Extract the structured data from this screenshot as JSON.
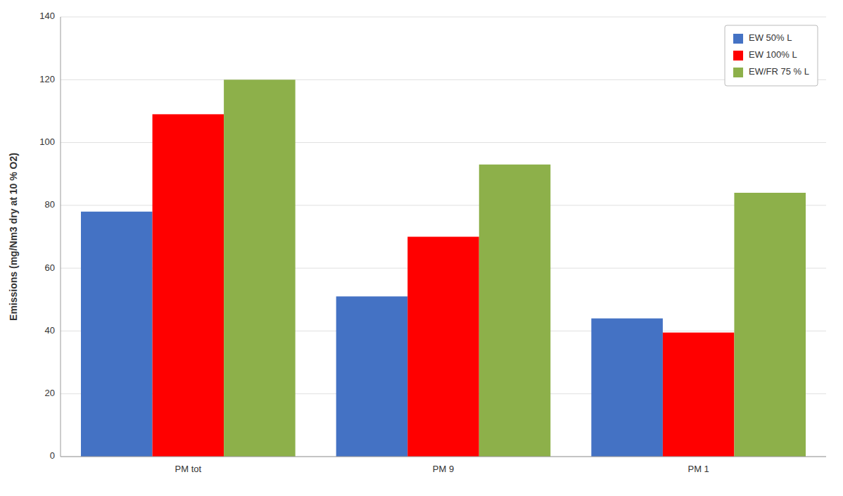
{
  "chart_data": {
    "type": "bar",
    "categories": [
      "PM tot",
      "PM 9",
      "PM 1"
    ],
    "series": [
      {
        "name": "EW 50% L",
        "color": "#4472C4",
        "values": [
          78,
          51,
          44
        ]
      },
      {
        "name": "EW 100% L",
        "color": "#FF0000",
        "values": [
          109,
          70,
          39.5
        ]
      },
      {
        "name": "EW/FR 75 % L",
        "color": "#8DB04A",
        "values": [
          120,
          93,
          84
        ]
      }
    ],
    "ylabel": "Emissions (mg/Nm3 dry at 10 % O2)",
    "ylim": [
      0,
      140
    ],
    "yticks": [
      0,
      20,
      40,
      60,
      80,
      100,
      120,
      140
    ],
    "grid": true,
    "legend": "upper right"
  }
}
